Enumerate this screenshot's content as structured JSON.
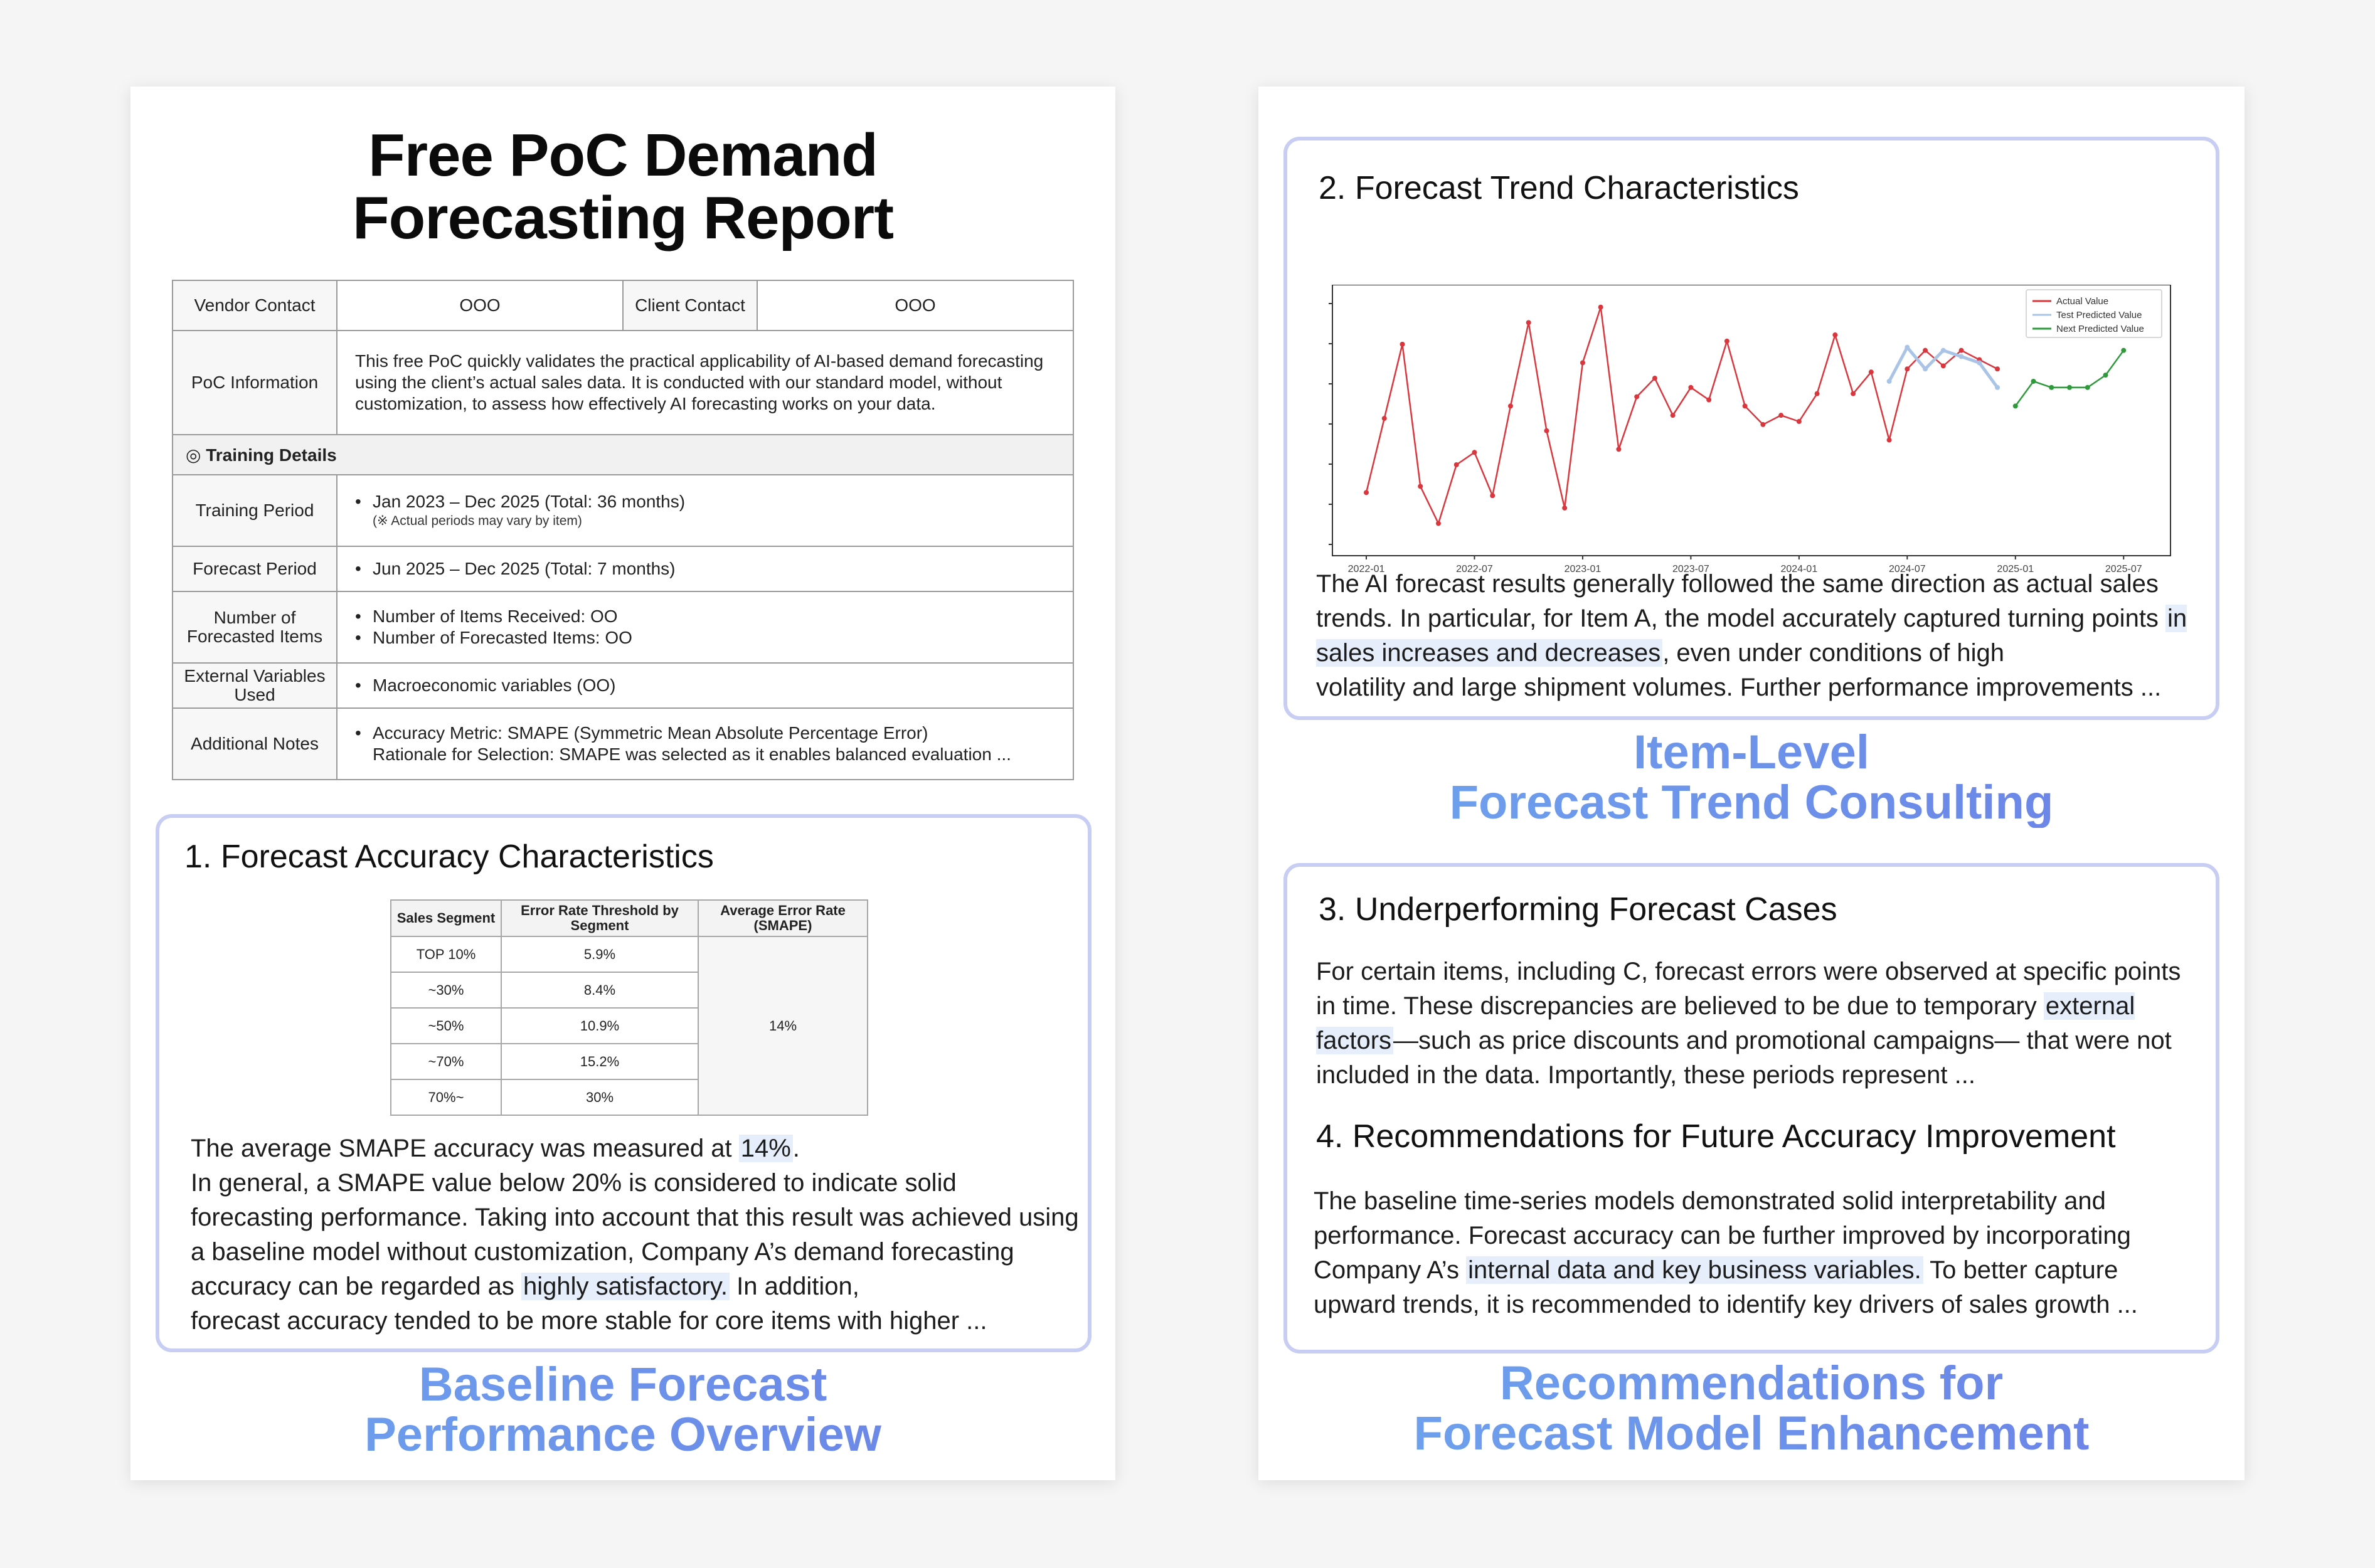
{
  "left_page": {
    "title_line1": "Free PoC Demand",
    "title_line2": "Forecasting Report",
    "info": {
      "vendor_contact_label": "Vendor Contact",
      "vendor_contact_value": "OOO",
      "client_contact_label": "Client Contact",
      "client_contact_value": "OOO",
      "poc_info_label": "PoC Information",
      "poc_info_text": "This free PoC quickly validates the practical applicability of AI-based demand forecasting using the client’s actual sales data. It is conducted with our standard model, without customization, to assess how effectively AI forecasting works on your data.",
      "training_details_header": "◎ Training Details",
      "training_period_label": "Training Period",
      "training_period_value": "Jan 2023 – Dec 2025 (Total: 36 months)",
      "training_period_note": "(※ Actual periods may vary by item)",
      "forecast_period_label": "Forecast Period",
      "forecast_period_value": "Jun 2025 – Dec 2025 (Total: 7 months)",
      "items_label": "Number of Forecasted Items",
      "items_received": "Number of Items Received: OO",
      "items_forecasted": "Number of Forecasted Items: OO",
      "external_label": "External Variables Used",
      "external_value": "Macroeconomic variables (OO)",
      "notes_label": "Additional Notes",
      "notes_line1": "Accuracy Metric: SMAPE (Symmetric Mean Absolute Percentage Error)",
      "notes_line2": "Rationale for Selection: SMAPE was selected as it enables balanced evaluation ..."
    },
    "section1": {
      "title": "1. Forecast Accuracy Characteristics",
      "table": {
        "headers": [
          "Sales Segment",
          "Error Rate Threshold by Segment",
          "Average Error Rate (SMAPE)"
        ],
        "rows": [
          [
            "TOP 10%",
            "5.9%"
          ],
          [
            "~30%",
            "8.4%"
          ],
          [
            "~50%",
            "10.9%"
          ],
          [
            "~70%",
            "15.2%"
          ],
          [
            "70%~",
            "30%"
          ]
        ],
        "average": "14%"
      },
      "p1_a": "The average SMAPE accuracy was measured at ",
      "p1_hl": "14%",
      "p1_b": ".",
      "p2": "In general, a SMAPE value below 20% is considered to indicate solid forecasting performance. Taking into account that this result was achieved using a baseline model without customization, Company A’s demand forecasting accuracy can be regarded as ",
      "p2_hl": "highly satisfactory.",
      "p2_b": " In addition,",
      "p2_last": "forecast accuracy tended to be more stable for core items with higher ..."
    },
    "subtitle_line1": "Baseline Forecast",
    "subtitle_line2": "Performance Overview"
  },
  "right_page": {
    "section2": {
      "title": "2. Forecast Trend Characteristics",
      "p_a": "The AI forecast results generally followed the same direction as actual sales trends. In particular, for Item A, the model accurately captured turning points ",
      "p_hl": "in sales increases and decreases",
      "p_b": ", even under conditions of high",
      "p_last": "volatility and large shipment volumes. Further performance improvements ..."
    },
    "subtitle1_line1": "Item-Level",
    "subtitle1_line2": "Forecast Trend Consulting",
    "section3": {
      "title": "3. Underperforming Forecast Cases",
      "p_a": "For certain items, including C, forecast errors were observed at specific points in time. These discrepancies are believed to be due to temporary ",
      "p_hl": "external factors",
      "p_b": "—such as price discounts and promotional campaigns— that were not included in the data.",
      "p_last": "Importantly, these periods represent ..."
    },
    "section4": {
      "title": "4. Recommendations for Future Accuracy Improvement",
      "p_a": "The baseline time-series models demonstrated solid interpretability and performance. Forecast accuracy can be further improved by incorporating Company A’s ",
      "p_hl": "internal data and key business variables.",
      "p_b": " To better capture",
      "p_last": "upward trends, it is recommended to identify key drivers of sales growth ..."
    },
    "subtitle2_line1": "Recommendations for",
    "subtitle2_line2": "Forecast Model Enhancement"
  },
  "chart_data": {
    "type": "line",
    "title": "",
    "xlabel": "",
    "ylabel": "",
    "x_ticks": [
      "2022-01",
      "2022-07",
      "2023-01",
      "2023-07",
      "2024-01",
      "2024-07",
      "2025-01",
      "2025-07"
    ],
    "grid": false,
    "legend": "top-right",
    "colors": {
      "actual": "#d9363e",
      "test": "#a9c4e6",
      "next": "#2e9a3c"
    },
    "series": [
      {
        "name": "Actual Value",
        "x": [
          "2022-01",
          "2022-02",
          "2022-03",
          "2022-04",
          "2022-05",
          "2022-06",
          "2022-07",
          "2022-08",
          "2022-09",
          "2022-10",
          "2022-11",
          "2022-12",
          "2023-01",
          "2023-02",
          "2023-03",
          "2023-04",
          "2023-05",
          "2023-06",
          "2023-07",
          "2023-08",
          "2023-09",
          "2023-10",
          "2023-11",
          "2023-12",
          "2024-01",
          "2024-02",
          "2024-03",
          "2024-04",
          "2024-05",
          "2024-06",
          "2024-07",
          "2024-08",
          "2024-09",
          "2024-10",
          "2024-11",
          "2024-12"
        ],
        "values": [
          18,
          42,
          66,
          20,
          8,
          27,
          31,
          17,
          46,
          73,
          38,
          13,
          60,
          78,
          32,
          49,
          55,
          43,
          52,
          48,
          67,
          46,
          40,
          43,
          41,
          50,
          69,
          50,
          57,
          35,
          58,
          64,
          59,
          64,
          61,
          58
        ]
      },
      {
        "name": "Test Predicted Value",
        "x": [
          "2024-06",
          "2024-07",
          "2024-08",
          "2024-09",
          "2024-10",
          "2024-11",
          "2024-12"
        ],
        "values": [
          54,
          65,
          58,
          64,
          62,
          60,
          52
        ]
      },
      {
        "name": "Next Predicted Value",
        "x": [
          "2025-01",
          "2025-02",
          "2025-03",
          "2025-04",
          "2025-05",
          "2025-06",
          "2025-07"
        ],
        "values": [
          46,
          54,
          52,
          52,
          52,
          56,
          64
        ]
      }
    ]
  }
}
